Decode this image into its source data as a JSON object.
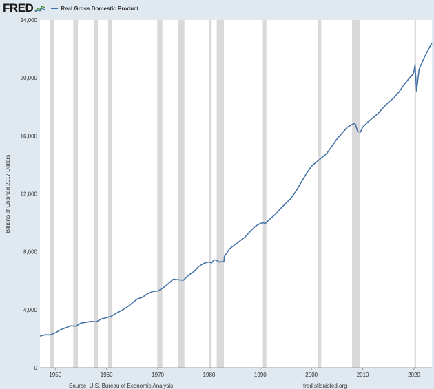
{
  "header": {
    "logo_text": "FRED",
    "logo_icon": "trend-graph-icon"
  },
  "footer": {
    "source": "Source: U.S. Bureau of Economic Analysis",
    "site": "fred.stlouisfed.org"
  },
  "colors": {
    "line": "#4572a7",
    "recession": "#d9d9d9",
    "page_bg": "#e1e9f0",
    "plot_bg": "#ffffff"
  },
  "chart_data": {
    "type": "line",
    "title": "",
    "xlabel": "",
    "ylabel": "Billions of Chained 2017 Dollars",
    "xlim": [
      1947,
      2023.5
    ],
    "ylim": [
      0,
      24000
    ],
    "x_ticks": [
      1950,
      1960,
      1970,
      1980,
      1990,
      2000,
      2010,
      2020
    ],
    "y_ticks": [
      0,
      4000,
      8000,
      12000,
      16000,
      20000,
      24000
    ],
    "y_tick_labels": [
      "0",
      "4,000",
      "8,000",
      "12,000",
      "16,000",
      "20,000",
      "24,000"
    ],
    "grid": false,
    "legend": "top-left",
    "recessions": [
      [
        1948.9,
        1949.8
      ],
      [
        1953.5,
        1954.4
      ],
      [
        1957.6,
        1958.3
      ],
      [
        1960.3,
        1961.1
      ],
      [
        1969.9,
        1970.9
      ],
      [
        1973.9,
        1975.2
      ],
      [
        1980.0,
        1980.5
      ],
      [
        1981.5,
        1982.9
      ],
      [
        1990.5,
        1991.2
      ],
      [
        2001.2,
        2001.9
      ],
      [
        2007.9,
        2009.5
      ],
      [
        2020.1,
        2020.4
      ]
    ],
    "series": [
      {
        "name": "Real Gross Domestic Product",
        "x": [
          1947,
          1948,
          1949,
          1950,
          1951,
          1952,
          1953,
          1954,
          1955,
          1956,
          1957,
          1958,
          1959,
          1960,
          1961,
          1962,
          1963,
          1964,
          1965,
          1966,
          1967,
          1968,
          1969,
          1970,
          1971,
          1972,
          1973,
          1974,
          1975,
          1976,
          1977,
          1978,
          1979,
          1980,
          1980.5,
          1981,
          1981.5,
          1982,
          1982.9,
          1983,
          1984,
          1985,
          1986,
          1987,
          1988,
          1989,
          1990,
          1990.5,
          1991,
          1992,
          1993,
          1994,
          1995,
          1996,
          1997,
          1998,
          1999,
          2000,
          2001,
          2002,
          2003,
          2004,
          2005,
          2006,
          2007,
          2008,
          2008.5,
          2009,
          2009.5,
          2010,
          2011,
          2012,
          2013,
          2014,
          2015,
          2016,
          2017,
          2018,
          2019,
          2019.9,
          2020.2,
          2020.5,
          2021,
          2022,
          2023,
          2023.5
        ],
        "values": [
          2180,
          2270,
          2260,
          2410,
          2620,
          2750,
          2890,
          2860,
          3080,
          3130,
          3200,
          3160,
          3370,
          3450,
          3560,
          3780,
          3960,
          4180,
          4460,
          4740,
          4860,
          5100,
          5260,
          5290,
          5490,
          5780,
          6100,
          6070,
          6040,
          6380,
          6630,
          6980,
          7200,
          7300,
          7230,
          7440,
          7400,
          7290,
          7330,
          7680,
          8200,
          8480,
          8740,
          9000,
          9400,
          9750,
          9950,
          10000,
          9960,
          10300,
          10600,
          11000,
          11350,
          11700,
          12200,
          12800,
          13400,
          13900,
          14200,
          14500,
          14800,
          15300,
          15800,
          16200,
          16600,
          16800,
          16850,
          16300,
          16250,
          16600,
          16950,
          17250,
          17550,
          17950,
          18300,
          18600,
          19000,
          19500,
          19950,
          20300,
          20900,
          19100,
          20600,
          21400,
          22100,
          22400
        ]
      }
    ]
  }
}
